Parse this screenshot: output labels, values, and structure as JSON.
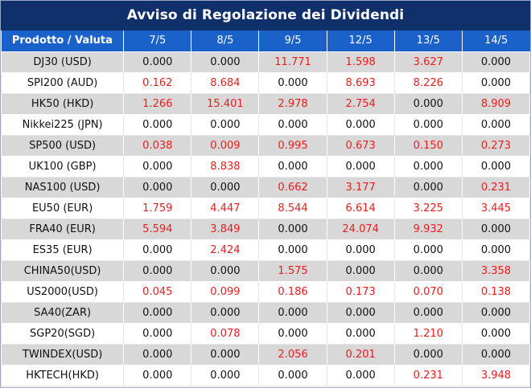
{
  "title": "Avviso di Regolazione dei Dividendi",
  "table": {
    "headers": [
      "Prodotto / Valuta",
      "7/5",
      "8/5",
      "9/5",
      "12/5",
      "13/5",
      "14/5"
    ],
    "rows": [
      {
        "name": "DJ30 (USD)",
        "values": [
          "0.000",
          "0.000",
          "11.771",
          "1.598",
          "3.627",
          "0.000"
        ]
      },
      {
        "name": "SPI200 (AUD)",
        "values": [
          "0.162",
          "8.684",
          "0.000",
          "8.693",
          "8.226",
          "0.000"
        ]
      },
      {
        "name": "HK50 (HKD)",
        "values": [
          "1.266",
          "15.401",
          "2.978",
          "2.754",
          "0.000",
          "8.909"
        ]
      },
      {
        "name": "Nikkei225 (JPN)",
        "values": [
          "0.000",
          "0.000",
          "0.000",
          "0.000",
          "0.000",
          "0.000"
        ]
      },
      {
        "name": "SP500 (USD)",
        "values": [
          "0.038",
          "0.009",
          "0.995",
          "0.673",
          "0.150",
          "0.273"
        ]
      },
      {
        "name": "UK100 (GBP)",
        "values": [
          "0.000",
          "8.838",
          "0.000",
          "0.000",
          "0.000",
          "0.000"
        ]
      },
      {
        "name": "NAS100 (USD)",
        "values": [
          "0.000",
          "0.000",
          "0.662",
          "3.177",
          "0.000",
          "0.231"
        ]
      },
      {
        "name": "EU50 (EUR)",
        "values": [
          "1.759",
          "4.447",
          "8.544",
          "6.614",
          "3.225",
          "3.445"
        ]
      },
      {
        "name": "FRA40 (EUR)",
        "values": [
          "5.594",
          "3.849",
          "0.000",
          "24.074",
          "9.932",
          "0.000"
        ]
      },
      {
        "name": "ES35 (EUR)",
        "values": [
          "0.000",
          "2.424",
          "0.000",
          "0.000",
          "0.000",
          "0.000"
        ]
      },
      {
        "name": "CHINA50(USD)",
        "values": [
          "0.000",
          "0.000",
          "1.575",
          "0.000",
          "0.000",
          "3.358"
        ]
      },
      {
        "name": "US2000(USD)",
        "values": [
          "0.045",
          "0.099",
          "0.186",
          "0.173",
          "0.070",
          "0.138"
        ]
      },
      {
        "name": "SA40(ZAR)",
        "values": [
          "0.000",
          "0.000",
          "0.000",
          "0.000",
          "0.000",
          "0.000"
        ]
      },
      {
        "name": "SGP20(SGD)",
        "values": [
          "0.000",
          "0.078",
          "0.000",
          "0.000",
          "1.210",
          "0.000"
        ]
      },
      {
        "name": "TWINDEX(USD)",
        "values": [
          "0.000",
          "0.000",
          "2.056",
          "0.201",
          "0.000",
          "0.000"
        ]
      },
      {
        "name": "HKTECH(HKD)",
        "values": [
          "0.000",
          "0.000",
          "0.000",
          "0.000",
          "0.231",
          "3.948"
        ]
      }
    ]
  },
  "colors": {
    "title_bg": "#10306c",
    "header_bg": "#1a62c9",
    "stripe_bg": "#d8d8d8",
    "positive_value": "#ee1c1c",
    "zero_value": "#111111"
  }
}
